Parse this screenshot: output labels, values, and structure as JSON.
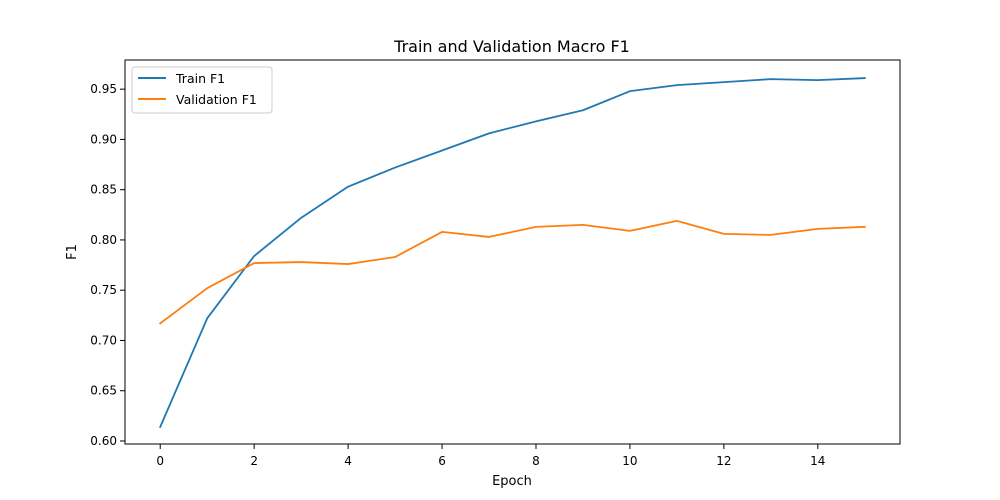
{
  "chart_data": {
    "type": "line",
    "title": "Train and Validation Macro F1",
    "xlabel": "Epoch",
    "ylabel": "F1",
    "xlim": [
      -0.75,
      15.75
    ],
    "ylim": [
      0.597,
      0.979
    ],
    "xticks": [
      0,
      2,
      4,
      6,
      8,
      10,
      12,
      14
    ],
    "xtick_labels": [
      "0",
      "2",
      "4",
      "6",
      "8",
      "10",
      "12",
      "14"
    ],
    "yticks": [
      0.6,
      0.65,
      0.7,
      0.75,
      0.8,
      0.85,
      0.9,
      0.95
    ],
    "ytick_labels": [
      "0.60",
      "0.65",
      "0.70",
      "0.75",
      "0.80",
      "0.85",
      "0.90",
      "0.95"
    ],
    "grid": false,
    "legend_position": "top-left",
    "x": [
      0,
      1,
      2,
      3,
      4,
      5,
      6,
      7,
      8,
      9,
      10,
      11,
      12,
      13,
      14,
      15
    ],
    "series": [
      {
        "name": "Train F1",
        "color": "#1f77b4",
        "values": [
          0.614,
          0.722,
          0.784,
          0.822,
          0.853,
          0.872,
          0.889,
          0.906,
          0.918,
          0.929,
          0.948,
          0.954,
          0.957,
          0.96,
          0.959,
          0.961
        ]
      },
      {
        "name": "Validation F1",
        "color": "#ff7f0e",
        "values": [
          0.717,
          0.752,
          0.777,
          0.778,
          0.776,
          0.783,
          0.808,
          0.803,
          0.813,
          0.815,
          0.809,
          0.819,
          0.806,
          0.805,
          0.811,
          0.813
        ]
      }
    ]
  }
}
